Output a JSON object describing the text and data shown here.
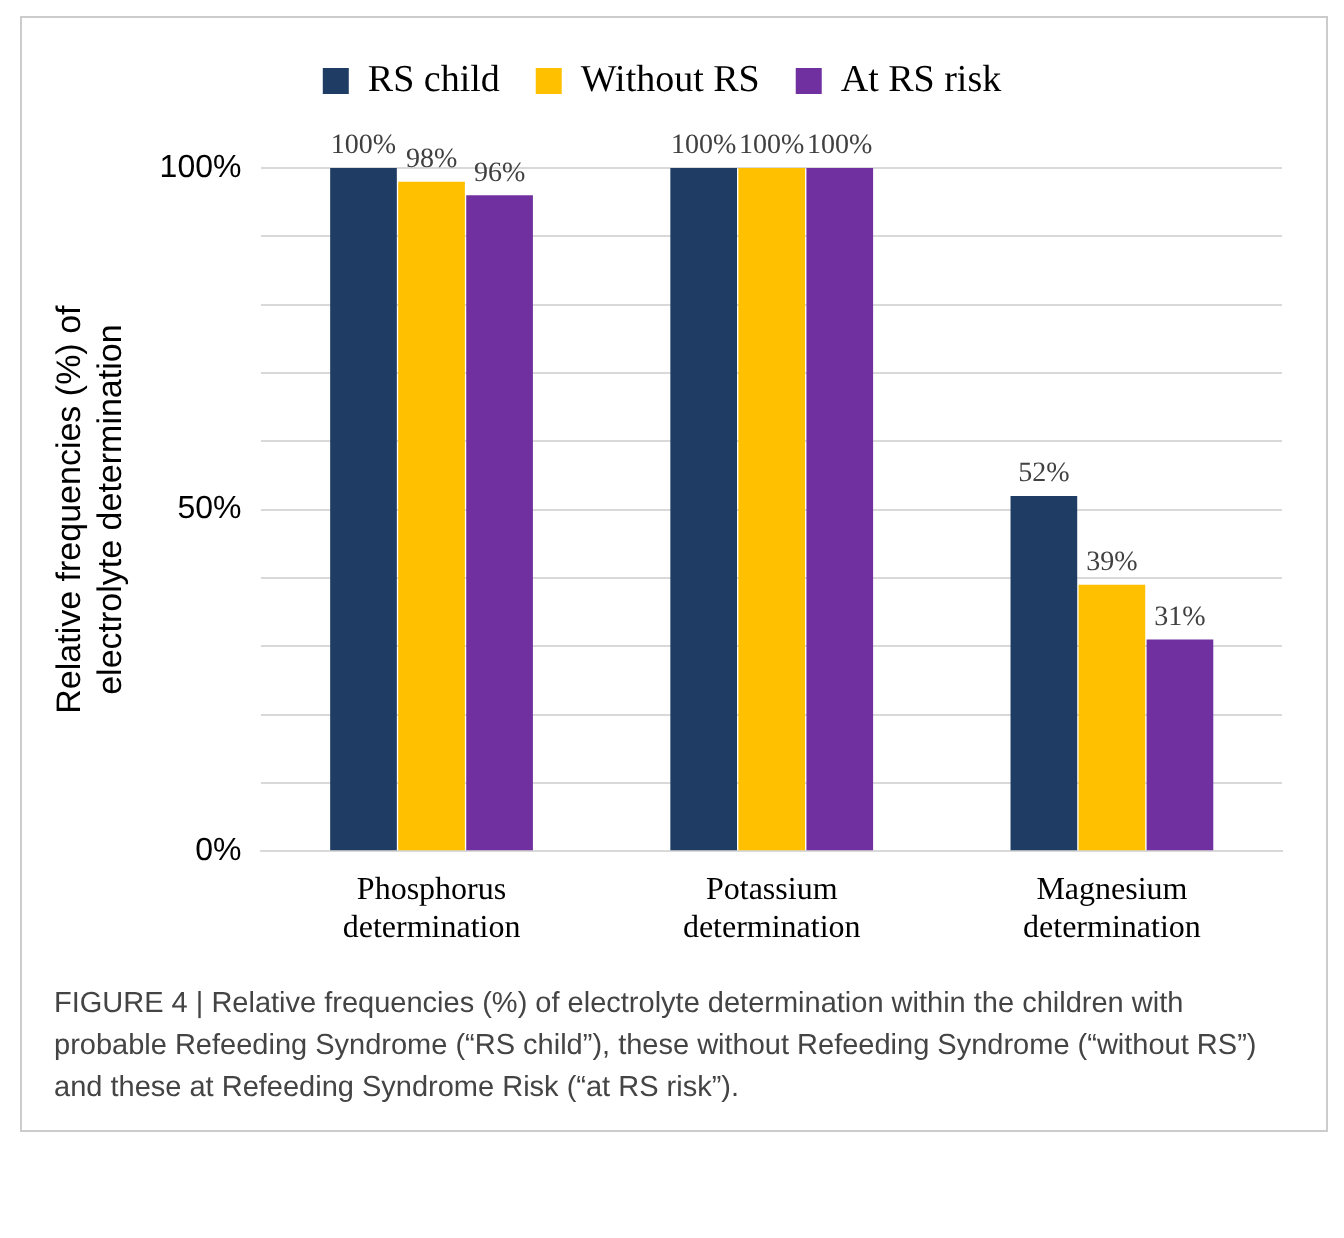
{
  "chart_data": {
    "type": "bar",
    "ylabel": "Relative frequencies (%) of electrolyte determination",
    "categories": [
      "Phosphorus determination",
      "Potassium determination",
      "Magnesium determination"
    ],
    "series": [
      {
        "name": "RS child",
        "color": "#1f3d64",
        "values": [
          100,
          100,
          52
        ],
        "value_labels": [
          "100%",
          "100%",
          "52%"
        ]
      },
      {
        "name": "Without RS",
        "color": "#ffc000",
        "values": [
          98,
          100,
          39
        ],
        "value_labels": [
          "98%",
          "100%",
          "39%"
        ]
      },
      {
        "name": "At RS risk",
        "color": "#7030a0",
        "values": [
          96,
          100,
          31
        ],
        "value_labels": [
          "96%",
          "100%",
          "31%"
        ]
      }
    ],
    "ylim": [
      0,
      100
    ],
    "yticks": [
      {
        "value": 0,
        "label": "0%"
      },
      {
        "value": 10,
        "label": null
      },
      {
        "value": 20,
        "label": null
      },
      {
        "value": 30,
        "label": null
      },
      {
        "value": 40,
        "label": null
      },
      {
        "value": 50,
        "label": "50%"
      },
      {
        "value": 60,
        "label": null
      },
      {
        "value": 70,
        "label": null
      },
      {
        "value": 80,
        "label": null
      },
      {
        "value": 90,
        "label": null
      },
      {
        "value": 100,
        "label": "100%"
      }
    ],
    "grid": "y",
    "legend": "top",
    "annotations": [
      "FIGURE 4 | Relative frequencies (%) of electrolyte determination within the children with probable Refeeding Syndrome (“RS child”), these without Refeeding Syndrome (“without RS”) and these at Refeeding Syndrome Risk (“at RS risk”)."
    ]
  }
}
